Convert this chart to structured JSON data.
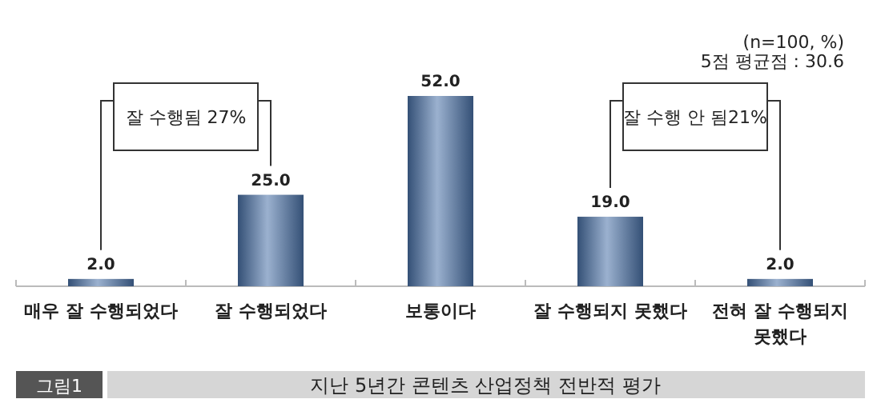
{
  "chart_data": {
    "type": "bar",
    "title": "지난 5년간 콘텐츠 산업정책 전반적 평가",
    "categories": [
      "매우 잘 수행되었다",
      "잘 수행되었다",
      "보통이다",
      "잘 수행되지 못했다",
      "전혀 잘 수행되지 못했다"
    ],
    "values": [
      2.0,
      25.0,
      52.0,
      19.0,
      2.0
    ],
    "color": "#4a72a8",
    "value_labels": [
      "2.0",
      "25.0",
      "52.0",
      "19.0",
      "2.0"
    ],
    "annotations": [
      "(n=100, %)",
      "5점 평균점 : 30.6",
      "잘 수행됨 27%",
      "잘 수행 안 됨21%",
      "그림1"
    ]
  }
}
